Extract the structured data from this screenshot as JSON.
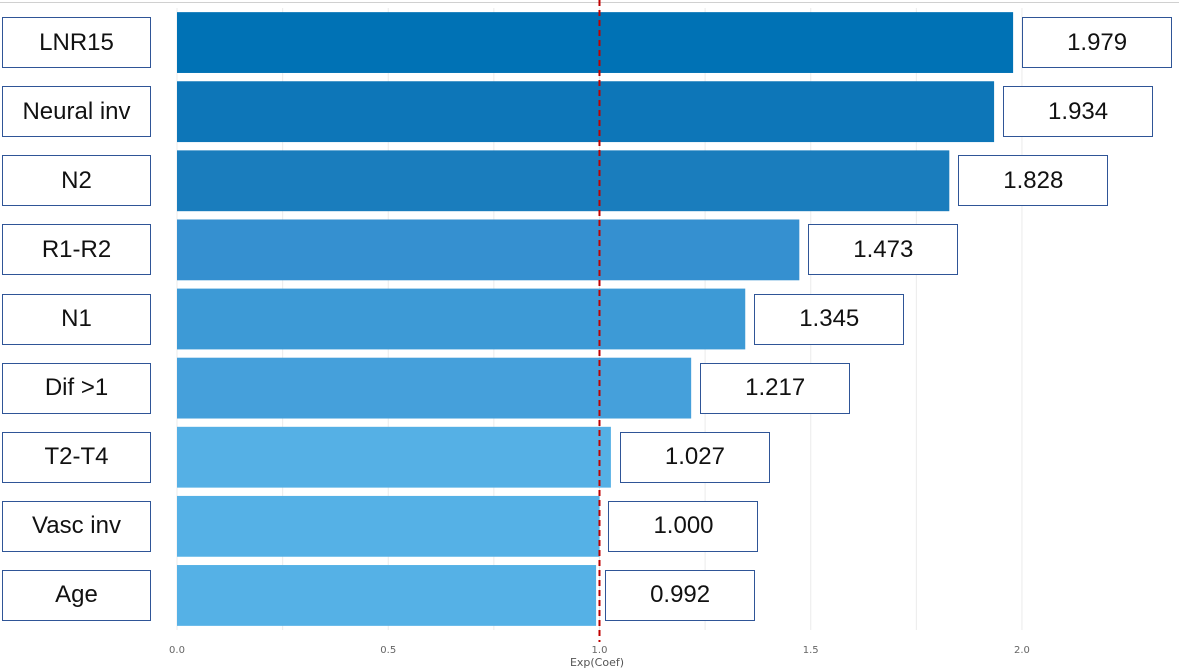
{
  "chart_data": {
    "type": "bar",
    "orientation": "horizontal",
    "categories": [
      "LNR15",
      "Neural inv",
      "N2",
      "R1-R2",
      "N1",
      "Dif >1",
      "T2-T4",
      "Vasc inv",
      "Age"
    ],
    "values": [
      1.979,
      1.934,
      1.828,
      1.473,
      1.345,
      1.217,
      1.027,
      1.0,
      0.992
    ],
    "value_labels": [
      "1.979",
      "1.934",
      "1.828",
      "1.473",
      "1.345",
      "1.217",
      "1.027",
      "1.000",
      "0.992"
    ],
    "bar_colors": [
      "#0072b5",
      "#0d76b8",
      "#1a7dbd",
      "#3590d0",
      "#3d9ad6",
      "#45a0db",
      "#55b0e5",
      "#55b1e6",
      "#55b1e6"
    ],
    "title": "",
    "xlabel": "Exp(Coef)",
    "ylabel": "",
    "xlim": [
      0,
      2.09
    ],
    "x_ticks": [
      0.0,
      0.5,
      1.0,
      1.5,
      2.0
    ],
    "x_tick_labels": [
      "0.0",
      "0.5",
      "1.0",
      "1.5",
      "2.0"
    ],
    "reference_line": {
      "value": 1.0,
      "color": "#c00000",
      "style": "dashed"
    },
    "grid": true,
    "legend": "none"
  }
}
